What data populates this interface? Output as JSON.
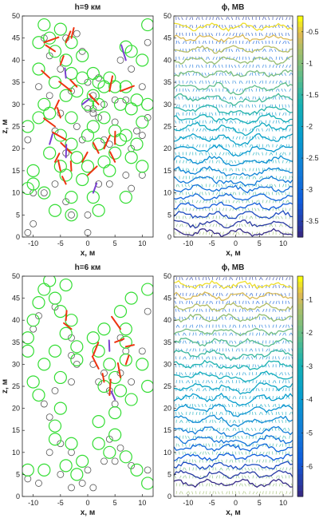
{
  "chart_data": [
    {
      "type": "scatter",
      "title": "h=9 км",
      "xlabel": "x, м",
      "ylabel": "z, м",
      "xlim": [
        -12,
        12
      ],
      "ylim": [
        0,
        50
      ],
      "xticks": [
        -10,
        -5,
        0,
        5,
        10
      ],
      "yticks": [
        0,
        5,
        10,
        15,
        20,
        25,
        30,
        35,
        40,
        45,
        50
      ],
      "series": [
        {
          "marker": "circle",
          "points": [
            [
              -11,
              25
            ],
            [
              -10,
              12
            ],
            [
              -10,
              15
            ],
            [
              -9,
              38
            ],
            [
              -9,
              44
            ],
            [
              -8,
              48
            ],
            [
              -8,
              30
            ],
            [
              -7,
              45
            ],
            [
              -7,
              28
            ],
            [
              -7,
              19
            ],
            [
              -6,
              42
            ],
            [
              -6,
              35
            ],
            [
              -5,
              47
            ],
            [
              -5,
              23
            ],
            [
              -5,
              16
            ],
            [
              -4,
              40
            ],
            [
              -4,
              32
            ],
            [
              -4,
              14
            ],
            [
              -3,
              44
            ],
            [
              -3,
              37
            ],
            [
              -3,
              27
            ],
            [
              -3,
              21
            ],
            [
              -3,
              9
            ],
            [
              -2,
              33
            ],
            [
              -2,
              18
            ],
            [
              -1,
              41
            ],
            [
              -1,
              13
            ],
            [
              -1,
              36
            ],
            [
              0,
              30
            ],
            [
              0,
              23
            ],
            [
              0,
              16
            ],
            [
              1,
              37
            ],
            [
              1,
              32
            ],
            [
              1,
              25
            ],
            [
              1,
              9
            ],
            [
              2,
              35
            ],
            [
              2,
              30
            ],
            [
              2,
              21
            ],
            [
              2,
              6
            ],
            [
              3,
              34
            ],
            [
              3,
              27
            ],
            [
              3,
              17
            ],
            [
              4,
              36
            ],
            [
              4,
              15
            ],
            [
              5,
              34
            ],
            [
              5,
              24
            ],
            [
              5,
              19
            ],
            [
              6,
              30
            ],
            [
              6,
              22
            ],
            [
              7,
              43
            ],
            [
              7,
              34
            ],
            [
              7,
              23
            ],
            [
              7,
              9
            ],
            [
              8,
              42
            ],
            [
              8,
              18
            ],
            [
              9,
              31
            ],
            [
              9,
              21
            ],
            [
              10,
              26
            ],
            [
              10,
              16
            ],
            [
              11,
              30
            ],
            [
              11,
              48
            ],
            [
              -6,
              6
            ],
            [
              -3,
              5
            ],
            [
              -8,
              10
            ],
            [
              -11,
              11
            ],
            [
              -9,
              27
            ],
            [
              8,
              29
            ],
            [
              10,
              40
            ]
          ]
        },
        {
          "marker": "circle",
          "points": [
            [
              -11,
              22
            ],
            [
              -10,
              10
            ],
            [
              -9,
              34
            ],
            [
              -8,
              45
            ],
            [
              -7,
              41
            ],
            [
              -7,
              32
            ],
            [
              -6,
              24
            ],
            [
              -6,
              12
            ],
            [
              -5,
              38
            ],
            [
              -5,
              28
            ],
            [
              -4,
              45
            ],
            [
              -4,
              19
            ],
            [
              -4,
              8
            ],
            [
              -3,
              33
            ],
            [
              -3,
              5
            ],
            [
              -2,
              46
            ],
            [
              -2,
              25
            ],
            [
              -1,
              42
            ],
            [
              -1,
              22
            ],
            [
              0,
              35
            ],
            [
              0,
              29
            ],
            [
              0,
              5
            ],
            [
              0,
              1
            ],
            [
              1,
              32
            ],
            [
              1,
              29
            ],
            [
              1,
              28
            ],
            [
              2,
              27
            ],
            [
              2,
              12
            ],
            [
              3,
              30
            ],
            [
              3,
              22
            ],
            [
              4,
              21
            ],
            [
              4,
              12
            ],
            [
              5,
              26
            ],
            [
              6,
              40
            ],
            [
              7,
              31
            ],
            [
              7,
              14
            ],
            [
              8,
              38
            ],
            [
              8,
              20
            ],
            [
              8,
              11
            ],
            [
              9,
              24
            ],
            [
              10,
              34
            ],
            [
              10,
              23
            ],
            [
              10,
              14
            ],
            [
              11,
              27
            ],
            [
              11,
              44
            ],
            [
              -8,
              10
            ],
            [
              -10,
              3
            ],
            [
              -11,
              1
            ],
            [
              2,
              36
            ],
            [
              5,
              31
            ]
          ]
        }
      ],
      "vector_origins": [
        [
          -8,
          44
        ],
        [
          -6,
          42
        ],
        [
          -5,
          39
        ],
        [
          -4,
          44
        ],
        [
          -4,
          36
        ],
        [
          -3,
          33
        ],
        [
          -6,
          29
        ],
        [
          -5,
          27
        ],
        [
          -6,
          25
        ],
        [
          -7,
          21
        ],
        [
          -4,
          22
        ],
        [
          -3,
          19
        ],
        [
          -6,
          17
        ],
        [
          -5,
          15
        ],
        [
          -4,
          18
        ],
        [
          -3,
          15
        ],
        [
          -4,
          12
        ],
        [
          -1,
          17
        ],
        [
          0,
          14
        ],
        [
          1,
          10
        ],
        [
          2,
          19
        ],
        [
          3,
          20
        ],
        [
          5,
          17
        ],
        [
          -2,
          34
        ],
        [
          -1,
          30
        ],
        [
          2,
          30
        ],
        [
          4,
          33
        ],
        [
          6,
          33
        ],
        [
          5,
          21
        ],
        [
          7,
          40
        ],
        [
          -3,
          45
        ],
        [
          -7,
          36
        ]
      ]
    },
    {
      "type": "line",
      "title": "ϕ, МВ",
      "xlabel": "x, м",
      "xlim": [
        -13,
        12
      ],
      "ylim": [
        0,
        50
      ],
      "xticks": [
        -10,
        -5,
        0,
        5,
        10
      ],
      "yticks": [
        0,
        5,
        10,
        15,
        20,
        25,
        30,
        35,
        40,
        45,
        50
      ],
      "colorbar": {
        "ticks": [
          -0.5,
          -1,
          -1.5,
          -2,
          -2.5,
          -3,
          -3.5
        ],
        "range": [
          -3.75,
          -0.25
        ],
        "colormap": "parula"
      },
      "contour_levels": [
        47.5,
        45,
        42.5,
        40,
        37,
        34,
        31.5,
        29,
        27,
        25,
        22.5,
        20,
        17.5,
        15,
        13,
        11,
        9,
        7,
        5,
        3,
        1
      ]
    },
    {
      "type": "scatter",
      "title": "h=6 км",
      "xlabel": "x, м",
      "ylabel": "z, м",
      "xlim": [
        -12,
        12
      ],
      "ylim": [
        0,
        50
      ],
      "xticks": [
        -10,
        -5,
        0,
        5,
        10
      ],
      "yticks": [
        0,
        5,
        10,
        15,
        20,
        25,
        30,
        35,
        40,
        45,
        50
      ],
      "series": [
        {
          "marker": "circle",
          "points": [
            [
              -10,
              40
            ],
            [
              -9,
              44
            ],
            [
              -8,
              47
            ],
            [
              -7,
              49
            ],
            [
              -6,
              45
            ],
            [
              -5,
              42
            ],
            [
              -4,
              48
            ],
            [
              -11,
              36
            ],
            [
              -11,
              33
            ],
            [
              -6,
              33
            ],
            [
              -4,
              37
            ],
            [
              -3,
              40
            ],
            [
              -2,
              34
            ],
            [
              -2,
              31
            ],
            [
              -5,
              27
            ],
            [
              -5,
              20
            ],
            [
              -6,
              16
            ],
            [
              -9,
              23
            ],
            [
              -10,
              26
            ],
            [
              -8,
              30
            ],
            [
              1,
              36
            ],
            [
              2,
              33
            ],
            [
              3,
              38
            ],
            [
              4,
              30
            ],
            [
              5,
              27
            ],
            [
              6,
              42
            ],
            [
              7,
              38
            ],
            [
              7,
              35
            ],
            [
              7,
              31
            ],
            [
              8,
              45
            ],
            [
              6,
              24
            ],
            [
              3,
              25
            ],
            [
              2,
              17
            ],
            [
              5,
              19
            ],
            [
              8,
              22
            ],
            [
              11,
              47
            ],
            [
              10,
              30
            ],
            [
              11,
              25
            ],
            [
              -8,
              6
            ],
            [
              -6,
              13
            ],
            [
              -4,
              7
            ],
            [
              -3,
              12
            ],
            [
              -2,
              5
            ],
            [
              -1,
              8
            ],
            [
              2,
              12
            ],
            [
              4,
              10
            ],
            [
              5,
              14
            ],
            [
              7,
              9
            ],
            [
              -11,
              6
            ],
            [
              9,
              6
            ],
            [
              11,
              3
            ]
          ]
        },
        {
          "marker": "circle",
          "points": [
            [
              -10,
              38
            ],
            [
              -9,
              41
            ],
            [
              -6,
              43
            ],
            [
              -3,
              36
            ],
            [
              -2,
              30
            ],
            [
              -3,
              32
            ],
            [
              -6,
              24
            ],
            [
              -7,
              18
            ],
            [
              -8,
              21
            ],
            [
              -3,
              26
            ],
            [
              1,
              30
            ],
            [
              2,
              26
            ],
            [
              3,
              28
            ],
            [
              4,
              24
            ],
            [
              5,
              21
            ],
            [
              6,
              36
            ],
            [
              7,
              33
            ],
            [
              8,
              26
            ],
            [
              6,
              28
            ],
            [
              11,
              42
            ],
            [
              10,
              33
            ],
            [
              -7,
              10
            ],
            [
              -5,
              12
            ],
            [
              -3,
              10
            ],
            [
              -5,
              5
            ],
            [
              -3,
              2
            ],
            [
              -1,
              3
            ],
            [
              0,
              6
            ],
            [
              1,
              2
            ],
            [
              3,
              8
            ],
            [
              4,
              13
            ],
            [
              5,
              8
            ],
            [
              6,
              11
            ],
            [
              8,
              7
            ],
            [
              11,
              6
            ],
            [
              -11,
              4
            ],
            [
              -9,
              3
            ]
          ]
        }
      ],
      "vector_origins": [
        [
          1,
          32
        ],
        [
          2,
          29
        ],
        [
          3,
          26
        ],
        [
          4,
          23
        ],
        [
          5,
          22
        ],
        [
          6,
          38
        ],
        [
          7,
          34
        ],
        [
          7,
          30
        ],
        [
          6,
          27
        ],
        [
          4,
          33
        ],
        [
          -3,
          38
        ],
        [
          -4,
          40
        ],
        [
          5,
          35
        ]
      ]
    },
    {
      "type": "line",
      "title": "ϕ, МВ",
      "xlabel": "x, м",
      "xlim": [
        -13,
        12
      ],
      "ylim": [
        0,
        50
      ],
      "xticks": [
        -10,
        -5,
        0,
        5,
        10
      ],
      "yticks": [
        0,
        5,
        10,
        15,
        20,
        25,
        30,
        35,
        40,
        45,
        50
      ],
      "colorbar": {
        "ticks": [
          -1,
          -2,
          -3,
          -4,
          -5,
          -6
        ],
        "range": [
          -6.9,
          -0.3
        ],
        "colormap": "parula"
      },
      "contour_levels": [
        48,
        45.5,
        43,
        40.5,
        37.5,
        35,
        32.5,
        30,
        27.5,
        25,
        22.5,
        20,
        17.5,
        15,
        13,
        11,
        9,
        7,
        5,
        3
      ]
    }
  ]
}
